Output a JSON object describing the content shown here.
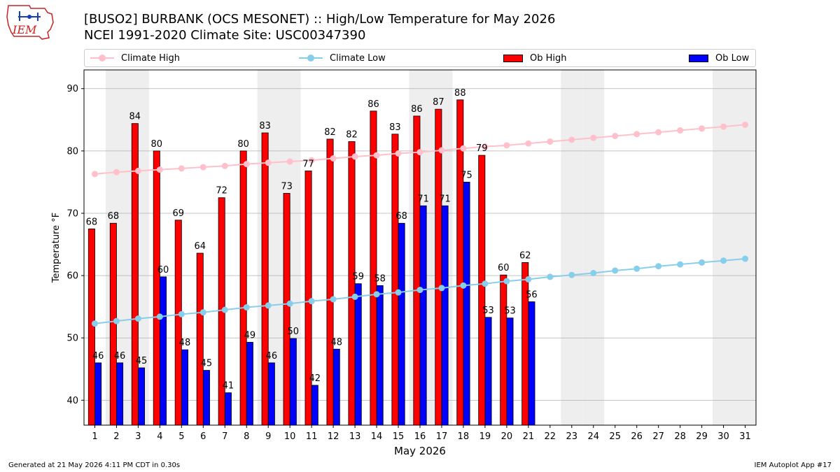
{
  "header": {
    "logo_text": "IEM",
    "title_line1": "[BUSO2] BURBANK (OCS MESONET) :: High/Low Temperature for May 2026",
    "title_line2": "NCEI 1991-2020 Climate Site: USC00347390"
  },
  "legend": {
    "items": [
      {
        "label": "Climate High",
        "kind": "line",
        "color": "#ffc0cb"
      },
      {
        "label": "Climate Low",
        "kind": "line",
        "color": "#87ceeb"
      },
      {
        "label": "Ob High",
        "kind": "bar",
        "color": "#ff0000"
      },
      {
        "label": "Ob Low",
        "kind": "bar",
        "color": "#0000ff"
      }
    ]
  },
  "chart_data": {
    "type": "bar",
    "xlabel": "May 2026",
    "ylabel": "Temperature °F",
    "ylim": [
      36,
      93
    ],
    "yticks": [
      40,
      50,
      60,
      70,
      80,
      90
    ],
    "days": [
      1,
      2,
      3,
      4,
      5,
      6,
      7,
      8,
      9,
      10,
      11,
      12,
      13,
      14,
      15,
      16,
      17,
      18,
      19,
      20,
      21,
      22,
      23,
      24,
      25,
      26,
      27,
      28,
      29,
      30,
      31
    ],
    "weekend_days": [
      2,
      3,
      9,
      10,
      16,
      17,
      23,
      24,
      30,
      31
    ],
    "series": [
      {
        "name": "Ob High",
        "color": "#ff0000",
        "values": [
          67.5,
          68.4,
          84.4,
          80.0,
          68.9,
          63.6,
          72.5,
          80.0,
          82.9,
          73.2,
          76.8,
          81.9,
          81.5,
          86.4,
          82.7,
          85.6,
          86.7,
          88.2,
          79.3,
          60.1,
          62.1
        ]
      },
      {
        "name": "Ob Low",
        "color": "#0000ff",
        "values": [
          46.0,
          46.0,
          45.2,
          59.8,
          48.1,
          44.8,
          41.2,
          49.3,
          46.0,
          49.9,
          42.4,
          48.2,
          58.7,
          58.4,
          68.4,
          71.2,
          71.2,
          75.0,
          53.3,
          53.2,
          55.8
        ]
      },
      {
        "name": "Climate High",
        "color": "#ffc0cb",
        "values": [
          76.3,
          76.6,
          76.8,
          77.0,
          77.2,
          77.4,
          77.6,
          77.9,
          78.1,
          78.3,
          78.5,
          78.8,
          79.1,
          79.3,
          79.6,
          79.8,
          80.1,
          80.4,
          80.7,
          80.9,
          81.2,
          81.5,
          81.8,
          82.1,
          82.4,
          82.7,
          83.0,
          83.3,
          83.6,
          83.9,
          84.2
        ]
      },
      {
        "name": "Climate Low",
        "color": "#87ceeb",
        "values": [
          52.3,
          52.7,
          53.1,
          53.4,
          53.8,
          54.1,
          54.5,
          54.9,
          55.2,
          55.5,
          55.9,
          56.2,
          56.6,
          57.0,
          57.3,
          57.7,
          58.0,
          58.4,
          58.7,
          59.1,
          59.4,
          59.8,
          60.1,
          60.4,
          60.8,
          61.1,
          61.5,
          61.8,
          62.1,
          62.4,
          62.7
        ]
      }
    ],
    "high_labels": [
      "68",
      "68",
      "84",
      "80",
      "69",
      "64",
      "72",
      "80",
      "83",
      "73",
      "77",
      "82",
      "82",
      "86",
      "83",
      "86",
      "87",
      "88",
      "79",
      "60",
      "62"
    ],
    "low_labels": [
      "46",
      "46",
      "45",
      "60",
      "48",
      "45",
      "41",
      "49",
      "46",
      "50",
      "42",
      "48",
      "59",
      "58",
      "68",
      "71",
      "71",
      "75",
      "53",
      "53",
      "56"
    ],
    "grid": "y",
    "legend_position": "top"
  },
  "footer": {
    "generated": "Generated at 21 May 2026 4:11 PM CDT in 0.30s",
    "app": "IEM Autoplot App #17"
  }
}
